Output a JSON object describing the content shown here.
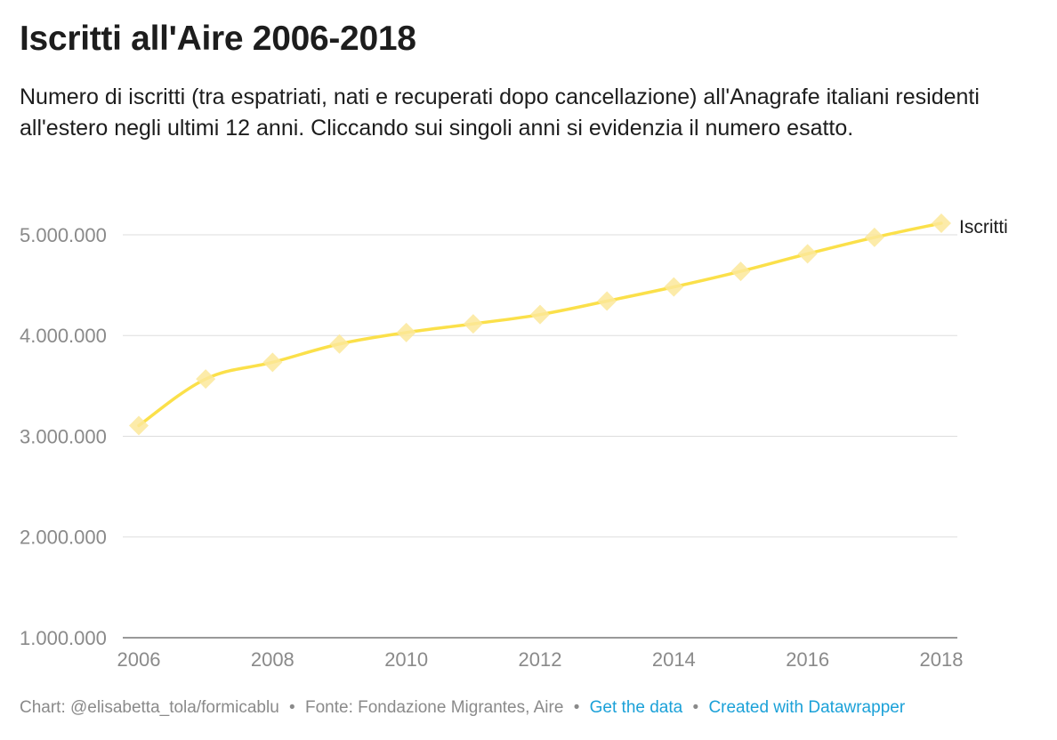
{
  "title": "Iscritti all'Aire 2006-2018",
  "subtitle": "Numero di iscritti (tra espatriati, nati e recuperati dopo cancellazione) all'Anagrafe italiani residenti all'estero negli ultimi 12 anni. Cliccando sui singoli anni si evidenzia il numero esatto.",
  "footer": {
    "credit": "Chart: @elisabetta_tola/formicablu",
    "sep1": "•",
    "source": "Fonte: Fondazione Migrantes, Aire",
    "sep2": "•",
    "get_data": "Get the data",
    "sep3": "•",
    "created_with": "Created with Datawrapper"
  },
  "colors": {
    "line": "#fbe04a",
    "marker": "#fbe79a",
    "grid": "#dddddd",
    "axis_text": "#8a8a8a",
    "link": "#1ba1d8"
  },
  "chart_data": {
    "type": "line",
    "title": "Iscritti all'Aire 2006-2018",
    "xlabel": "",
    "ylabel": "",
    "x": [
      2006,
      2007,
      2008,
      2009,
      2010,
      2011,
      2012,
      2013,
      2014,
      2015,
      2016,
      2017,
      2018
    ],
    "series": [
      {
        "name": "Iscritti",
        "values": [
          3106000,
          3568000,
          3734000,
          3916000,
          4030000,
          4116000,
          4208000,
          4342000,
          4482000,
          4637000,
          4811000,
          4974000,
          5115000
        ]
      }
    ],
    "xticks": [
      "2006",
      "2008",
      "2010",
      "2012",
      "2014",
      "2016",
      "2018"
    ],
    "yticks": [
      "1.000.000",
      "2.000.000",
      "3.000.000",
      "4.000.000",
      "5.000.000"
    ],
    "ytick_values": [
      1000000,
      2000000,
      3000000,
      4000000,
      5000000
    ],
    "xlim": [
      2006,
      2018
    ],
    "ylim": [
      1000000,
      5300000
    ],
    "grid": true,
    "legend": "end-of-line label"
  }
}
